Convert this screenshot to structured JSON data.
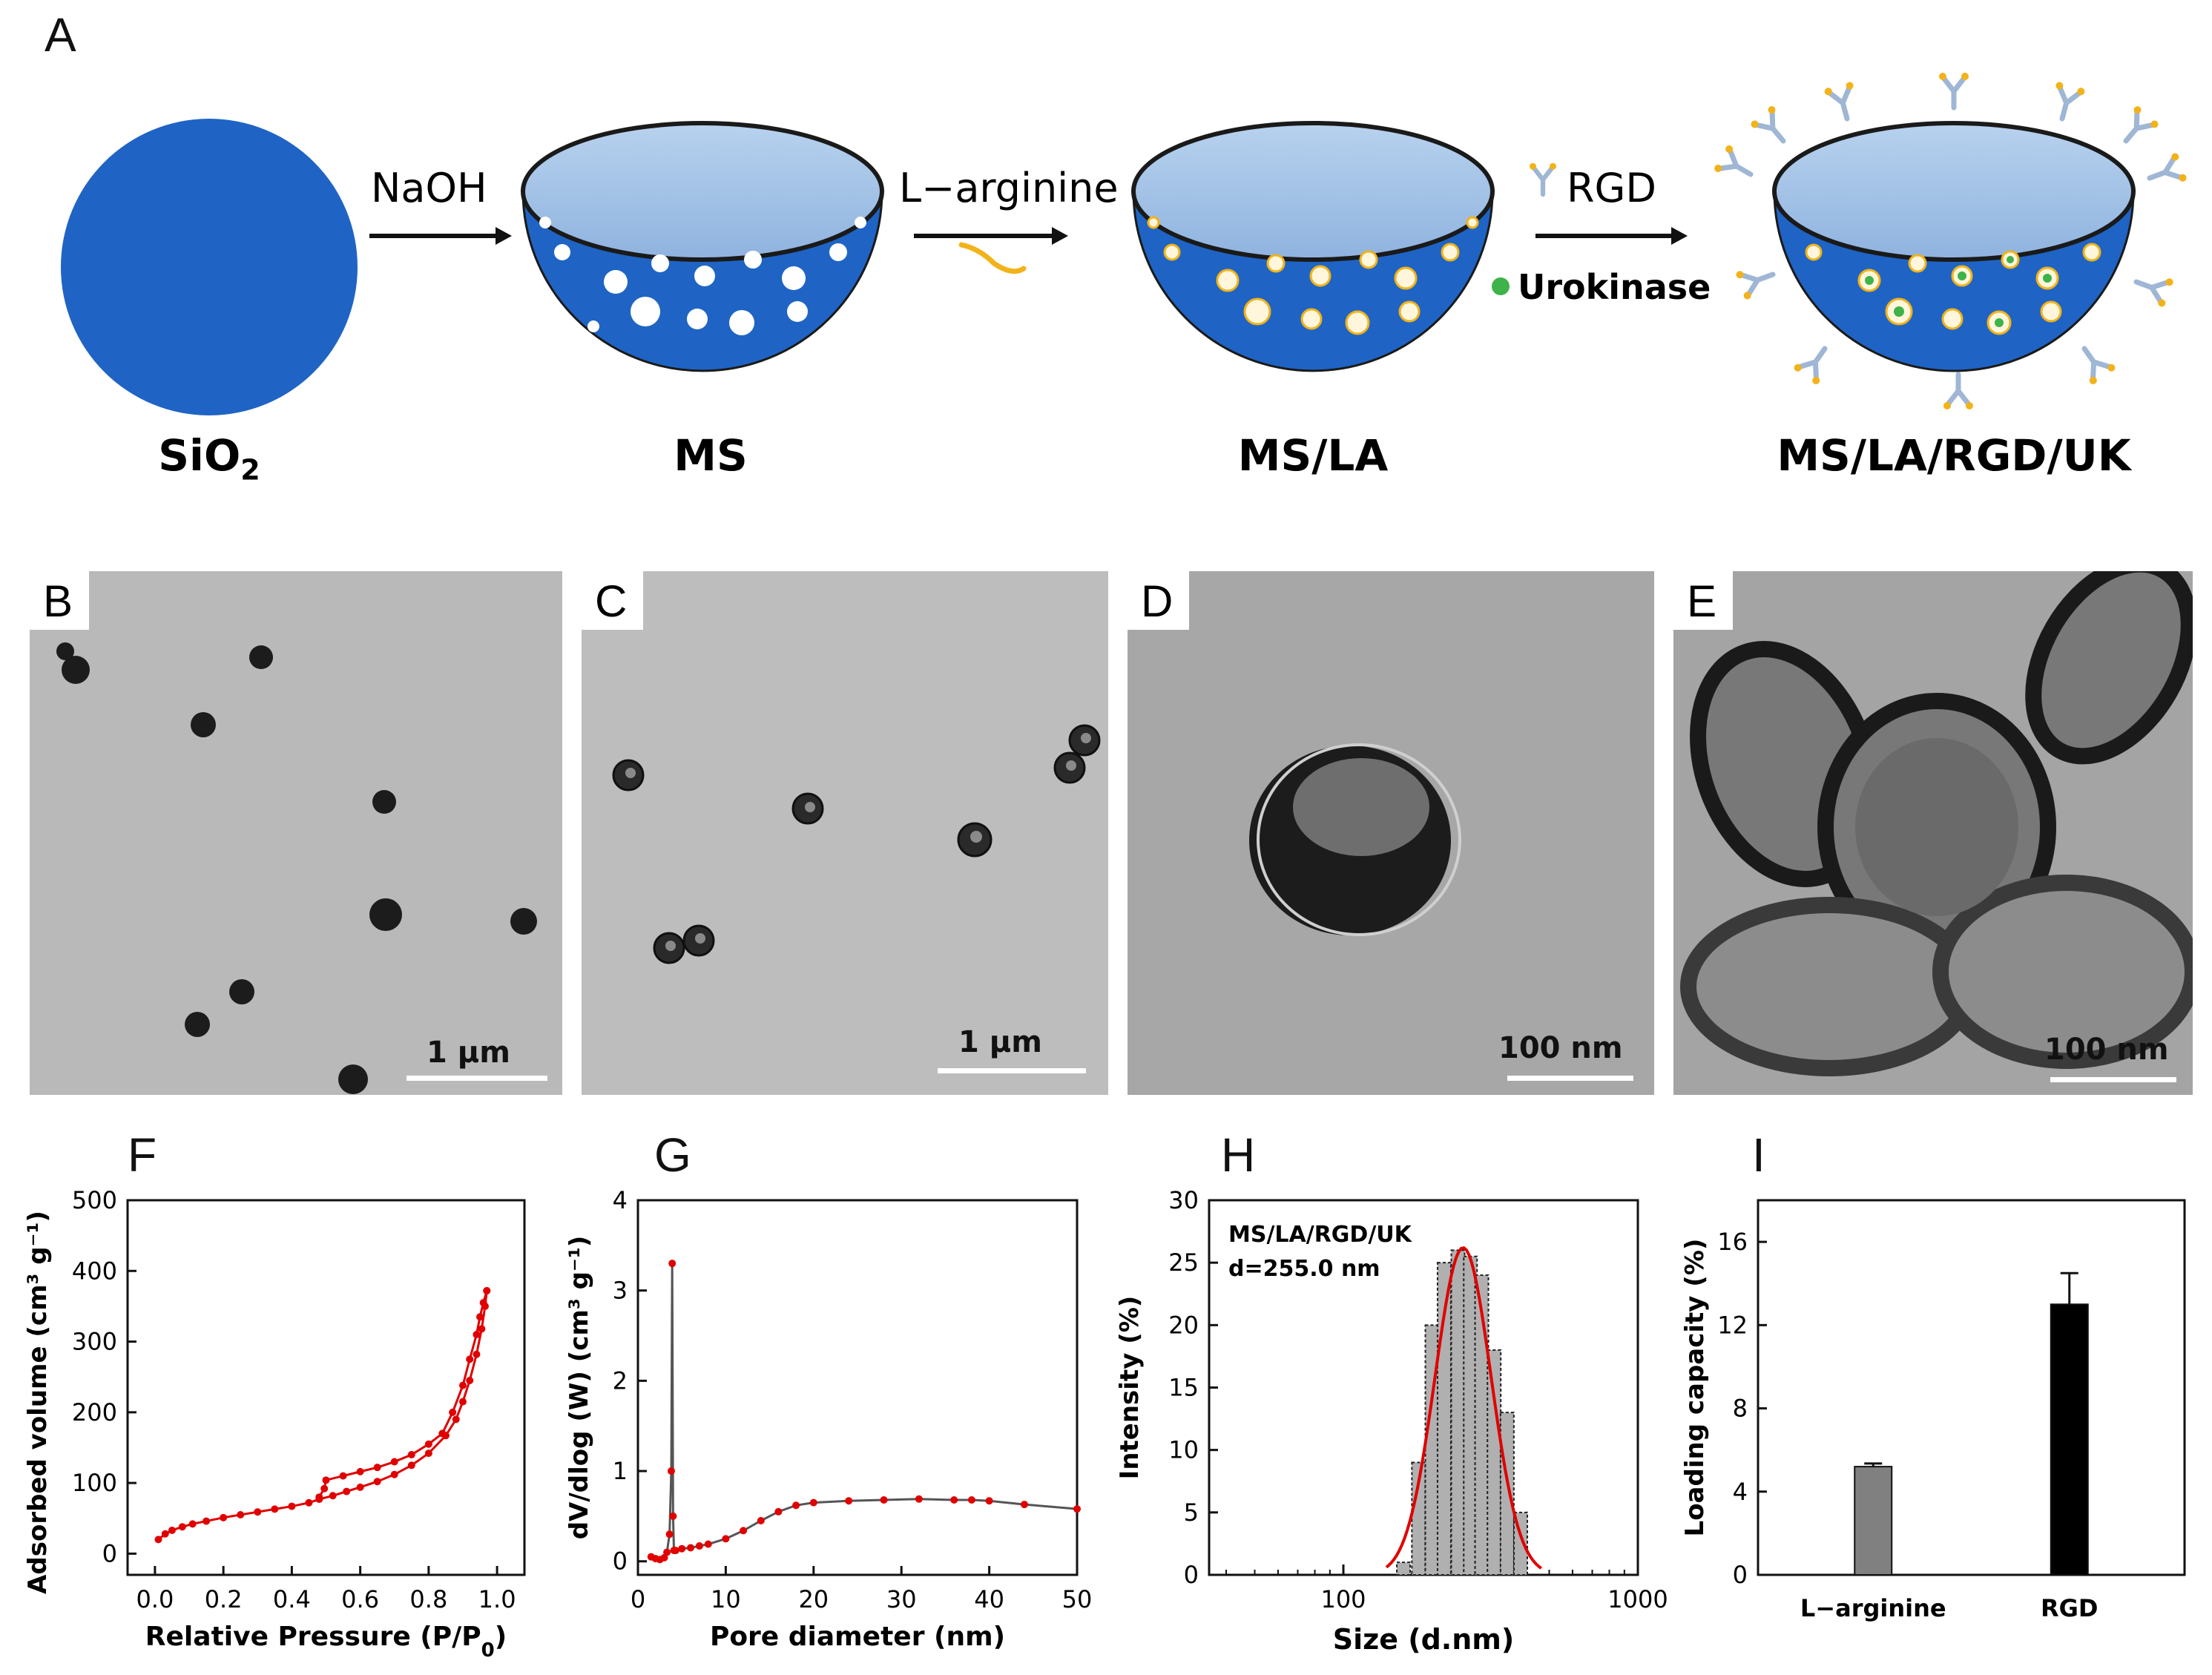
{
  "panel_labels": {
    "A": "A",
    "B": "B",
    "C": "C",
    "D": "D",
    "E": "E",
    "F": "F",
    "G": "G",
    "H": "H",
    "I": "I"
  },
  "schematic": {
    "stages": {
      "sio2": {
        "label_main": "SiO",
        "label_sub": "2"
      },
      "ms": {
        "label": "MS"
      },
      "msla": {
        "label": "MS/LA"
      },
      "final": {
        "label": "MS/LA/RGD/UK"
      }
    },
    "arrows": {
      "step1": "NaOH",
      "step2": "L−arginine",
      "step3": "RGD",
      "step3_extra": "Urokinase"
    },
    "colors": {
      "silica": "#1f64c4",
      "rim": "#9ec0e4",
      "rim_edge": "#1a1a1a",
      "larginine": "#f2b31a",
      "urokinase": "#3db34a",
      "rgd": "#9fb6d4"
    }
  },
  "tem": {
    "B": {
      "scale": "1 μm"
    },
    "C": {
      "scale": "1 μm"
    },
    "D": {
      "scale": "100 nm"
    },
    "E": {
      "scale": "100 nm"
    }
  },
  "chart_data": [
    {
      "panel": "F",
      "type": "line",
      "xlabel_main": "Relative Pressure (P/P",
      "xlabel_sub": "0",
      "xlabel_end": ")",
      "ylabel": "Adsorbed volume (cm³ g⁻¹)",
      "xlim": [
        -0.08,
        1.08
      ],
      "ylim": [
        -30,
        500
      ],
      "xticks": [
        "0.0",
        "0.2",
        "0.4",
        "0.6",
        "0.8",
        "1.0"
      ],
      "yticks": [
        "0",
        "100",
        "200",
        "300",
        "400",
        "500"
      ],
      "series": [
        {
          "values_x": [
            0.01,
            0.03,
            0.05,
            0.08,
            0.11,
            0.15,
            0.2,
            0.25,
            0.3,
            0.35,
            0.4,
            0.45,
            0.48,
            0.52,
            0.56,
            0.6,
            0.65,
            0.7,
            0.75,
            0.8,
            0.85,
            0.88,
            0.9,
            0.92,
            0.94,
            0.955,
            0.965,
            0.97
          ],
          "values_y": [
            20,
            28,
            33,
            38,
            42,
            46,
            51,
            55,
            59,
            63,
            67,
            72,
            77,
            82,
            88,
            94,
            102,
            112,
            125,
            142,
            167,
            190,
            215,
            245,
            282,
            318,
            350,
            372
          ]
        },
        {
          "values_x": [
            0.97,
            0.96,
            0.95,
            0.94,
            0.92,
            0.9,
            0.87,
            0.84,
            0.8,
            0.75,
            0.7,
            0.65,
            0.6,
            0.55,
            0.5,
            0.495,
            0.48
          ],
          "values_y": [
            372,
            355,
            335,
            310,
            275,
            238,
            200,
            170,
            155,
            140,
            130,
            122,
            116,
            110,
            104,
            92,
            80
          ]
        }
      ],
      "color": "#e00000"
    },
    {
      "panel": "G",
      "type": "line",
      "xlabel": "Pore diameter (nm)",
      "ylabel": "dV/dlog (W) (cm³ g⁻¹)",
      "xlim": [
        0,
        50
      ],
      "ylim": [
        -0.15,
        4
      ],
      "xticks": [
        "0",
        "10",
        "20",
        "30",
        "40",
        "50"
      ],
      "yticks": [
        "0",
        "1",
        "2",
        "3",
        "4"
      ],
      "x": [
        1.5,
        2,
        2.5,
        3,
        3.3,
        3.6,
        3.8,
        3.9,
        4.0,
        4.1,
        4.3,
        5,
        6,
        7,
        8,
        10,
        12,
        14,
        16,
        18,
        20,
        24,
        28,
        32,
        36,
        38,
        40,
        44,
        50
      ],
      "y": [
        0.05,
        0.03,
        0.02,
        0.04,
        0.1,
        0.3,
        1.0,
        3.3,
        0.5,
        0.12,
        0.12,
        0.14,
        0.15,
        0.17,
        0.19,
        0.25,
        0.34,
        0.45,
        0.55,
        0.62,
        0.65,
        0.67,
        0.68,
        0.69,
        0.68,
        0.68,
        0.67,
        0.63,
        0.58
      ],
      "color": "#555555",
      "marker_color": "#e00000"
    },
    {
      "panel": "H",
      "type": "bar",
      "xlabel": "Size (d.nm)",
      "ylabel": "Intensity (%)",
      "xscale": "log",
      "xlim": [
        35,
        1000
      ],
      "ylim": [
        0,
        30
      ],
      "xticks": [
        "100",
        "1000"
      ],
      "yticks": [
        "0",
        "5",
        "10",
        "15",
        "20",
        "25",
        "30"
      ],
      "annotation_1": "MS/LA/RGD/UK",
      "annotation_2": "d=255.0 nm",
      "bins_x": [
        160,
        180,
        200,
        220,
        245,
        270,
        295,
        325,
        360,
        400
      ],
      "values": [
        1,
        9,
        20,
        25,
        26,
        25.5,
        24,
        18,
        13,
        5
      ],
      "fit_color": "#e00000",
      "bar_color": "#b0b0b0"
    },
    {
      "panel": "I",
      "type": "bar",
      "ylabel": "Loading capacity (%)",
      "ylim": [
        0,
        18
      ],
      "yticks": [
        "0",
        "4",
        "8",
        "12",
        "16"
      ],
      "categories": [
        "L−arginine",
        "RGD"
      ],
      "values": [
        5.2,
        13.0
      ],
      "errors": [
        0.15,
        1.5
      ],
      "colors": [
        "#808080",
        "#000000"
      ]
    }
  ]
}
